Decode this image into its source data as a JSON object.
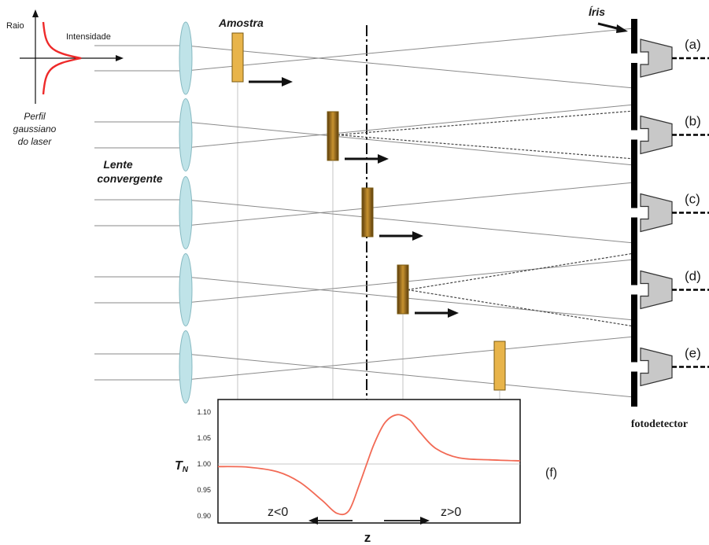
{
  "labels": {
    "raio": "Raio",
    "intensidade": "Intensidade",
    "perfil_line1": "Perfil",
    "perfil_line2": "gaussiano",
    "perfil_line3": "do laser",
    "amostra": "Amostra",
    "iris": "Íris",
    "lente_line1": "Lente",
    "lente_line2": "convergente",
    "fotodetector": "fotodetector",
    "tn": "T",
    "tn_sub": "N",
    "z_axis": "z",
    "z_neg": "z<0",
    "z_pos": "z>0",
    "plot_label": "(f)"
  },
  "rows": [
    {
      "label": "(a)",
      "sample_position": "before focus",
      "dashed_divergence": false
    },
    {
      "label": "(b)",
      "sample_position": "near focus, z<0",
      "dashed_divergence": true
    },
    {
      "label": "(c)",
      "sample_position": "at focus",
      "dashed_divergence": false
    },
    {
      "label": "(d)",
      "sample_position": "near focus, z>0",
      "dashed_divergence": true
    },
    {
      "label": "(e)",
      "sample_position": "far after focus",
      "dashed_divergence": false
    }
  ],
  "chart_data": {
    "type": "line",
    "ylabel": "TN",
    "xlabel": "z",
    "ylim": [
      0.89,
      1.12
    ],
    "yticks": [
      "0.90",
      "0.95",
      "1.00",
      "1.05",
      "1.10"
    ],
    "series": [
      {
        "x": [
          -1.0,
          -0.8,
          -0.6,
          -0.45,
          -0.3,
          -0.2,
          -0.12,
          -0.05,
          0.0,
          0.05,
          0.12,
          0.2,
          0.28,
          0.35,
          0.45,
          0.6,
          0.8,
          1.0
        ],
        "values": [
          0.995,
          0.994,
          0.985,
          0.965,
          0.93,
          0.905,
          0.91,
          0.96,
          1.0,
          1.04,
          1.08,
          1.095,
          1.085,
          1.06,
          1.03,
          1.012,
          1.008,
          1.006
        ]
      }
    ]
  },
  "colors": {
    "gaussian": "#ee2a2a",
    "curve": "#f26a55",
    "lens": "#bfe3e8",
    "sample_light": "#e8b44a",
    "sample_dark": "#6b4a12"
  }
}
